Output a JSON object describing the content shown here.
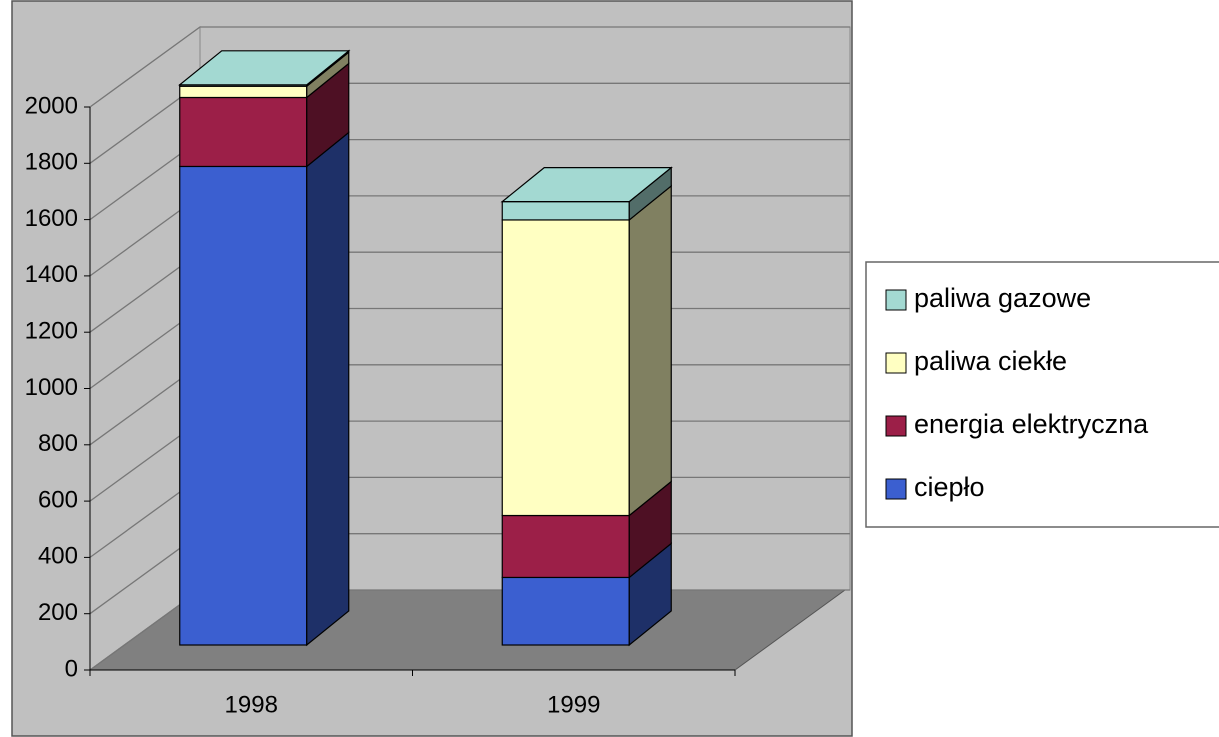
{
  "chart_data": {
    "type": "bar3d_stacked",
    "categories": [
      "1998",
      "1999"
    ],
    "series": [
      {
        "name": "ciepło",
        "color": "#3b5fd0",
        "values": [
          1700,
          240
        ]
      },
      {
        "name": "energia elektryczna",
        "color": "#9c1f48",
        "values": [
          245,
          220
        ]
      },
      {
        "name": "paliwa ciekłe",
        "color": "#ffffc2",
        "values": [
          40,
          1050
        ]
      },
      {
        "name": "paliwa gazowe",
        "color": "#a3d9d2",
        "values": [
          5,
          65
        ]
      }
    ],
    "ylim": [
      0,
      2000
    ],
    "yticks": [
      0,
      200,
      400,
      600,
      800,
      1000,
      1200,
      1400,
      1600,
      1800,
      2000
    ],
    "grid": true
  }
}
